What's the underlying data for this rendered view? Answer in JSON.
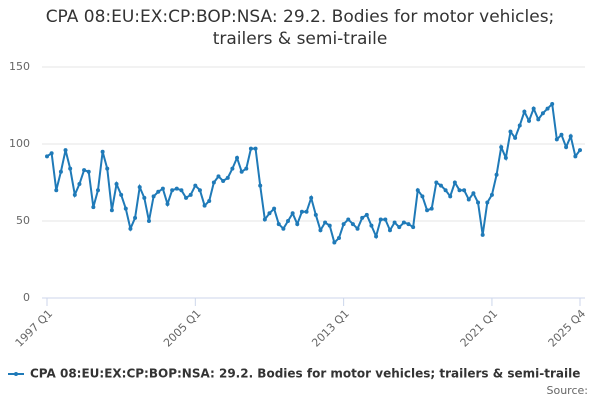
{
  "chart_data": {
    "type": "line",
    "title": "CPA 08:EU:EX:CP:BOP:NSA: 29.2. Bodies for motor vehicles; trailers & semi-traile",
    "source": "Source:",
    "categories": [
      "1997 Q1",
      null,
      null,
      null,
      null,
      null,
      null,
      null,
      null,
      null,
      null,
      null,
      null,
      null,
      null,
      null,
      null,
      null,
      null,
      null,
      null,
      null,
      null,
      null,
      null,
      null,
      null,
      null,
      null,
      null,
      null,
      null,
      "2005 Q1",
      null,
      null,
      null,
      null,
      null,
      null,
      null,
      null,
      null,
      null,
      null,
      null,
      null,
      null,
      null,
      null,
      null,
      null,
      null,
      null,
      null,
      null,
      null,
      null,
      null,
      null,
      null,
      null,
      null,
      null,
      null,
      "2013 Q1",
      null,
      null,
      null,
      null,
      null,
      null,
      null,
      null,
      null,
      null,
      null,
      null,
      null,
      null,
      null,
      null,
      null,
      null,
      null,
      null,
      null,
      null,
      null,
      null,
      null,
      null,
      null,
      null,
      null,
      null,
      null,
      "2021 Q1",
      null,
      null,
      null,
      null,
      null,
      null,
      null,
      null,
      null,
      null,
      null,
      null,
      null,
      null,
      null,
      null,
      null,
      null,
      "2025 Q4"
    ],
    "series": [
      {
        "name": "CPA 08:EU:EX:CP:BOP:NSA: 29.2. Bodies for motor vehicles; trailers & semi-traile",
        "color": "#1f7ab8",
        "values": [
          92,
          94,
          70,
          82,
          96,
          84,
          67,
          74,
          83,
          82,
          59,
          70,
          95,
          84,
          57,
          74,
          67,
          58,
          45,
          52,
          72,
          65,
          50,
          66,
          69,
          71,
          61,
          70,
          71,
          70,
          65,
          67,
          73,
          70,
          60,
          63,
          75,
          79,
          76,
          78,
          84,
          91,
          82,
          84,
          97,
          97,
          73,
          51,
          55,
          58,
          48,
          45,
          50,
          55,
          48,
          56,
          56,
          65,
          54,
          44,
          49,
          47,
          36,
          39,
          48,
          51,
          48,
          45,
          52,
          54,
          47,
          40,
          51,
          51,
          44,
          49,
          46,
          49,
          48,
          46,
          70,
          66,
          57,
          58,
          75,
          73,
          70,
          66,
          75,
          70,
          70,
          64,
          68,
          62,
          41,
          62,
          67,
          80,
          98,
          91,
          108,
          104,
          112,
          121,
          115,
          123,
          116,
          120,
          123,
          126,
          103,
          106,
          98,
          105,
          92,
          96
        ]
      }
    ],
    "ylim": [
      0,
      150
    ],
    "yticks": [
      0,
      50,
      100,
      150
    ],
    "grid": true
  }
}
